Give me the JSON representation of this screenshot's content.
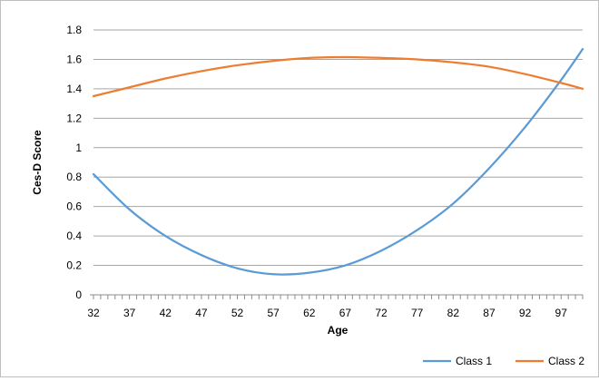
{
  "chart_data": {
    "type": "line",
    "title": "",
    "xlabel": "Age",
    "ylabel": "Ces-D Score",
    "xlim": [
      32,
      100
    ],
    "ylim": [
      0,
      1.8
    ],
    "y_ticks": [
      "0",
      "0.2",
      "0.4",
      "0.6",
      "0.8",
      "1",
      "1.2",
      "1.4",
      "1.6",
      "1.8"
    ],
    "x_tick_labels": [
      "32",
      "37",
      "42",
      "47",
      "52",
      "57",
      "62",
      "67",
      "72",
      "77",
      "82",
      "87",
      "92",
      "97"
    ],
    "grid": "horizontal",
    "legend_position": "bottom-right",
    "series": [
      {
        "name": "Class 1",
        "color": "#5b9bd5",
        "x": [
          32,
          37,
          42,
          47,
          52,
          57,
          62,
          67,
          72,
          77,
          82,
          87,
          92,
          97,
          100
        ],
        "y": [
          0.82,
          0.58,
          0.4,
          0.27,
          0.18,
          0.14,
          0.15,
          0.2,
          0.3,
          0.44,
          0.62,
          0.86,
          1.14,
          1.46,
          1.67
        ]
      },
      {
        "name": "Class 2",
        "color": "#ed7d31",
        "x": [
          32,
          37,
          42,
          47,
          52,
          57,
          62,
          67,
          72,
          77,
          82,
          87,
          92,
          97,
          100
        ],
        "y": [
          1.35,
          1.41,
          1.47,
          1.52,
          1.56,
          1.59,
          1.61,
          1.615,
          1.61,
          1.6,
          1.58,
          1.55,
          1.5,
          1.44,
          1.4
        ]
      }
    ]
  }
}
